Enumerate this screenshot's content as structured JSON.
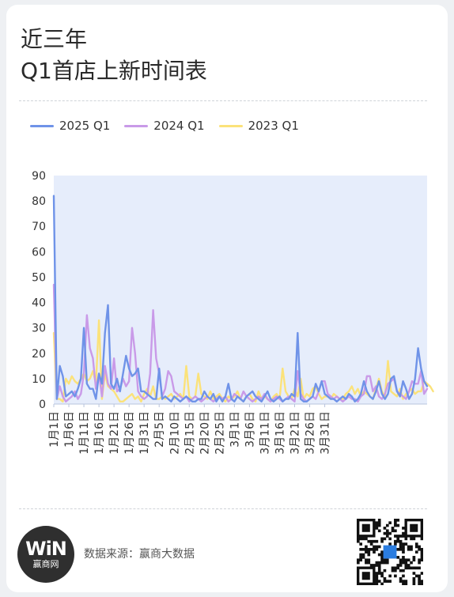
{
  "header": {
    "title_line1": "近三年",
    "title_line2": "Q1首店上新时间表"
  },
  "colors": {
    "s2025": "#6f93e8",
    "s2024": "#c99ae8",
    "s2023": "#fbe27a",
    "plot_bg": "#e6edfb"
  },
  "chart_data": {
    "type": "line",
    "title": "",
    "xlabel": "",
    "ylabel": "",
    "ylim": [
      0,
      90
    ],
    "yticks": [
      0,
      10,
      20,
      30,
      40,
      50,
      60,
      70,
      80,
      90
    ],
    "grid": false,
    "legend": "top-left",
    "xtick_labels": [
      "1月1日",
      "1月6日",
      "1月11日",
      "1月16日",
      "1月21日",
      "1月26日",
      "1月31日",
      "2月5日",
      "2月10日",
      "2月15日",
      "2月20日",
      "2月25日",
      "3月1日",
      "3月6日",
      "3月11日",
      "3月16日",
      "3月21日",
      "3月26日",
      "3月31日"
    ],
    "series": [
      {
        "name": "2025 Q1",
        "color": "#6f93e8",
        "values": [
          82,
          2,
          15,
          11,
          3,
          4,
          5,
          3,
          6,
          10,
          30,
          8,
          6,
          6,
          2,
          12,
          8,
          28,
          39,
          8,
          6,
          10,
          5,
          12,
          19,
          14,
          11,
          12,
          14,
          5,
          5,
          4,
          3,
          2,
          2,
          14,
          2,
          3,
          2,
          1,
          3,
          2,
          1,
          2,
          3,
          2,
          1,
          1,
          2,
          2,
          5,
          3,
          2,
          4,
          1,
          3,
          1,
          3,
          8,
          2,
          1,
          3,
          2,
          1,
          3,
          4,
          5,
          3,
          2,
          1,
          3,
          5,
          2,
          1,
          2,
          3,
          1,
          2,
          2,
          4,
          3,
          28,
          2,
          1,
          1,
          2,
          3,
          8,
          5,
          9,
          4,
          3,
          2,
          2,
          1,
          2,
          3,
          2,
          4,
          3,
          1,
          2,
          4,
          9,
          5,
          3,
          2,
          5,
          9,
          4,
          2,
          4,
          10,
          11,
          5,
          3,
          9,
          6,
          2,
          4,
          10,
          22,
          14,
          9,
          7
        ]
      },
      {
        "name": "2024 Q1",
        "color": "#c99ae8",
        "values": [
          47,
          2,
          7,
          3,
          1,
          2,
          3,
          5,
          2,
          4,
          12,
          35,
          22,
          18,
          6,
          12,
          3,
          15,
          8,
          6,
          18,
          5,
          6,
          10,
          7,
          9,
          30,
          20,
          5,
          3,
          2,
          3,
          12,
          37,
          18,
          12,
          3,
          6,
          13,
          11,
          5,
          4,
          3,
          2,
          3,
          1,
          2,
          3,
          2,
          1,
          2,
          3,
          2,
          1,
          2,
          3,
          2,
          3,
          1,
          2,
          4,
          3,
          2,
          5,
          3,
          2,
          1,
          2,
          3,
          2,
          4,
          2,
          1,
          2,
          3,
          2,
          1,
          2,
          3,
          2,
          1,
          13,
          4,
          2,
          1,
          2,
          3,
          2,
          5,
          9,
          9,
          4,
          3,
          2,
          3,
          2,
          1,
          2,
          3,
          2,
          2,
          1,
          3,
          4,
          11,
          11,
          5,
          7,
          3,
          2,
          4,
          8,
          9,
          10,
          5,
          4,
          3,
          2,
          5,
          9,
          8,
          8,
          13,
          4,
          6
        ]
      },
      {
        "name": "2023 Q1",
        "color": "#fbe27a",
        "values": [
          28,
          2,
          2,
          1,
          10,
          8,
          11,
          9,
          8,
          10,
          12,
          9,
          10,
          13,
          8,
          33,
          2,
          12,
          7,
          6,
          5,
          3,
          1,
          1,
          2,
          3,
          4,
          2,
          3,
          1,
          4,
          6,
          3,
          7,
          2,
          2,
          3,
          2,
          3,
          4,
          2,
          3,
          4,
          2,
          15,
          3,
          2,
          3,
          12,
          4,
          3,
          2,
          5,
          2,
          3,
          4,
          2,
          1,
          3,
          2,
          3,
          5,
          2,
          1,
          3,
          4,
          2,
          1,
          5,
          2,
          3,
          2,
          1,
          3,
          4,
          2,
          14,
          5,
          3,
          2,
          6,
          3,
          10,
          2,
          4,
          3,
          6,
          7,
          4,
          2,
          3,
          3,
          2,
          4,
          3,
          2,
          2,
          4,
          5,
          7,
          4,
          6,
          3,
          5,
          4,
          3,
          2,
          6,
          10,
          5,
          3,
          17,
          5,
          4,
          3,
          6,
          2,
          4,
          5,
          6,
          4,
          5,
          5,
          9,
          8,
          7,
          5
        ]
      }
    ]
  },
  "footer": {
    "logo_mark": "WiN",
    "logo_text": "赢商网",
    "source_text": "数据来源：赢商大数据"
  }
}
